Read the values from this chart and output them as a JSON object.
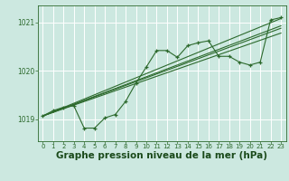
{
  "bg_color": "#cce8e0",
  "grid_color": "#ffffff",
  "line_color": "#2d6a2d",
  "marker_color": "#2d6a2d",
  "xlabel": "Graphe pression niveau de la mer (hPa)",
  "xlabel_fontsize": 7.5,
  "xlabel_color": "#1a4a1a",
  "yticks": [
    1019,
    1020,
    1021
  ],
  "xticks": [
    0,
    1,
    2,
    3,
    4,
    5,
    6,
    7,
    8,
    9,
    10,
    11,
    12,
    13,
    14,
    15,
    16,
    17,
    18,
    19,
    20,
    21,
    22,
    23
  ],
  "ylim": [
    1018.55,
    1021.35
  ],
  "xlim": [
    -0.5,
    23.5
  ],
  "series1_x": [
    0,
    1,
    2,
    3,
    4,
    5,
    6,
    7,
    8,
    9,
    10,
    11,
    12,
    13,
    14,
    15,
    16,
    17,
    18,
    19,
    20,
    21,
    22,
    23
  ],
  "series1_y": [
    1019.07,
    1019.18,
    1019.25,
    1019.28,
    1018.82,
    1018.82,
    1019.03,
    1019.1,
    1019.37,
    1019.75,
    1020.08,
    1020.42,
    1020.42,
    1020.28,
    1020.52,
    1020.58,
    1020.62,
    1020.3,
    1020.3,
    1020.18,
    1020.12,
    1020.18,
    1021.05,
    1021.1
  ],
  "line1_x": [
    0,
    23
  ],
  "line1_y": [
    1019.07,
    1021.08
  ],
  "line2_x": [
    0,
    23
  ],
  "line2_y": [
    1019.07,
    1020.78
  ],
  "line3_x": [
    0,
    23
  ],
  "line3_y": [
    1019.07,
    1020.93
  ],
  "line4_x": [
    0,
    23
  ],
  "line4_y": [
    1019.07,
    1020.88
  ]
}
